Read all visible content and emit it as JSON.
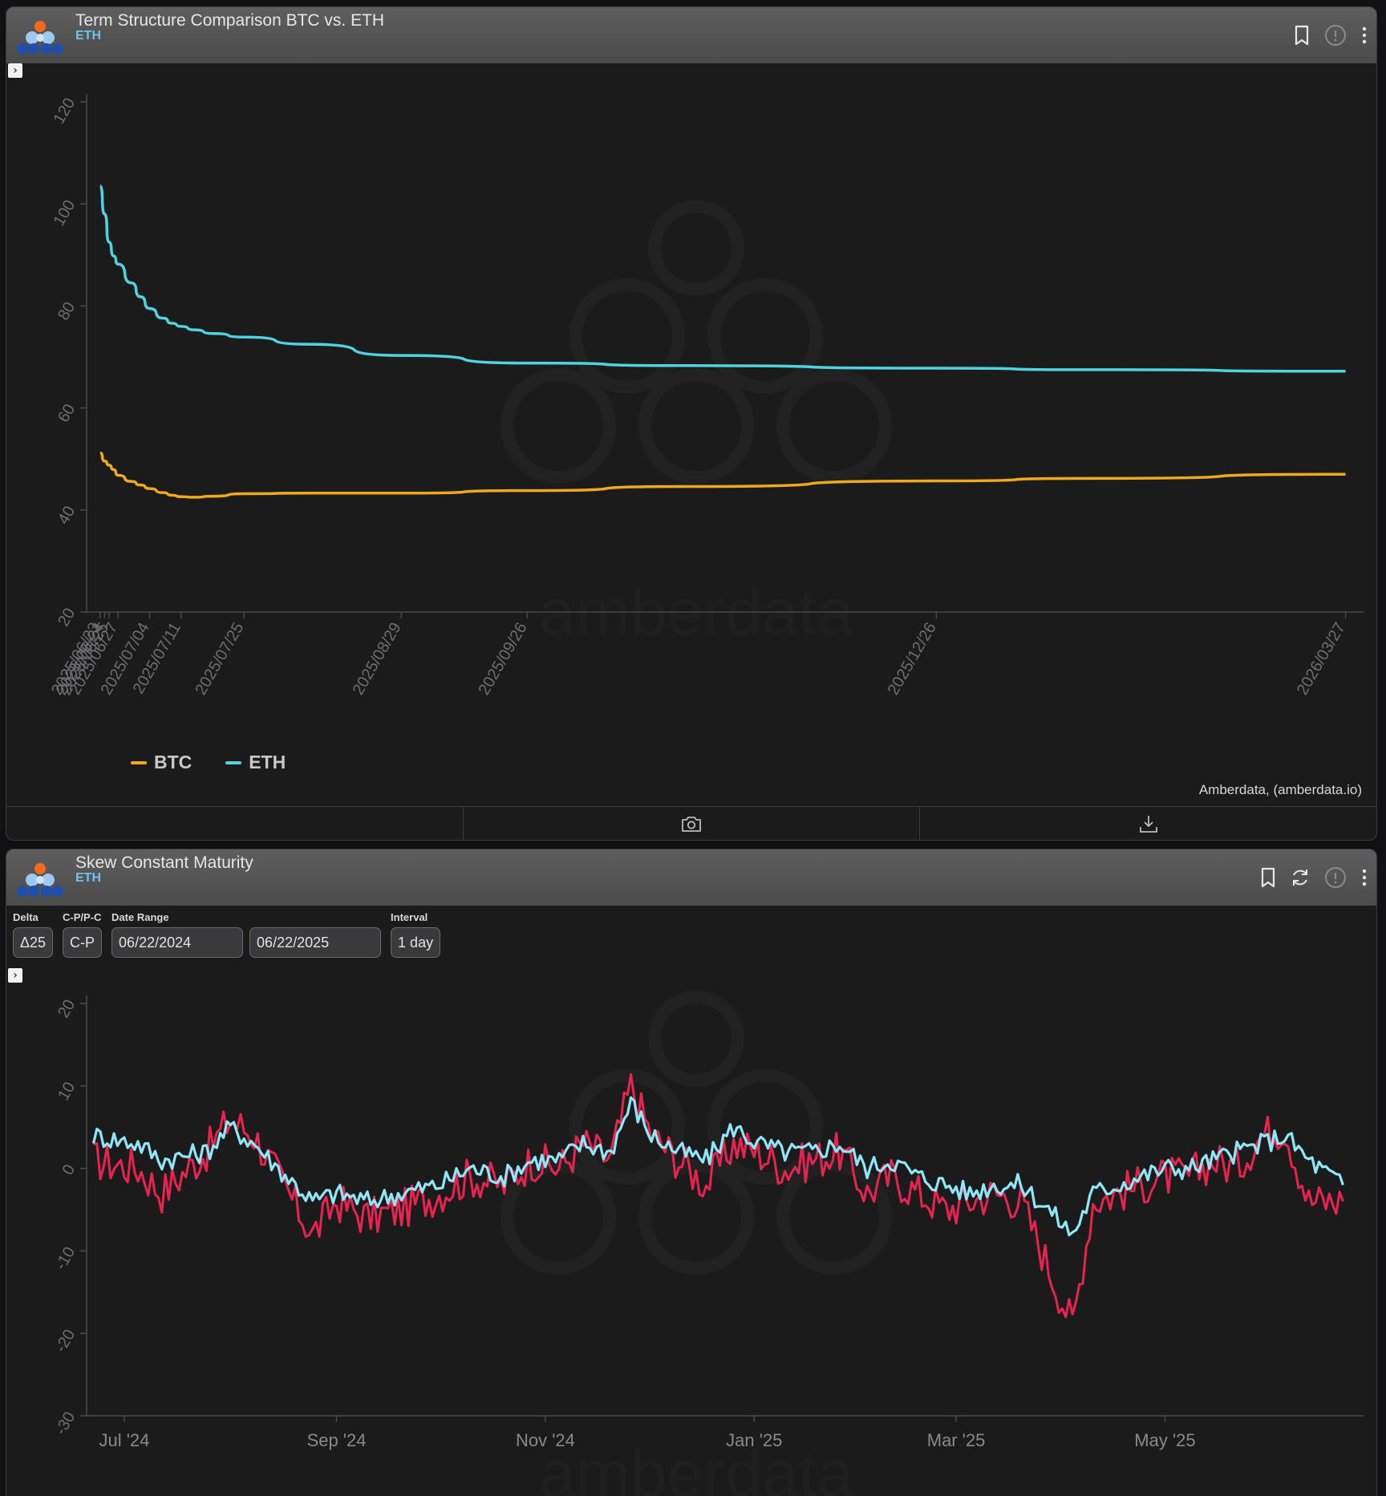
{
  "panel1": {
    "title": "Term Structure Comparison BTC vs. ETH",
    "subtitle": "ETH",
    "attribution": "Amberdata, (amberdata.io)",
    "watermark": "amberdata",
    "icons": [
      "bookmark-icon",
      "info-icon",
      "more-icon"
    ],
    "footer_icons": [
      "camera-icon",
      "download-icon"
    ]
  },
  "panel2": {
    "title": "Skew Constant Maturity",
    "subtitle": "ETH",
    "watermark": "amberdata",
    "icons": [
      "bookmark-icon",
      "refresh-icon",
      "info-icon",
      "more-icon"
    ],
    "controls": {
      "delta_label": "Delta",
      "delta_value": "Δ25",
      "cp_label": "C-P/P-C",
      "cp_value": "C-P",
      "date_range_label": "Date Range",
      "start_date": "06/22/2024",
      "end_date": "06/22/2025",
      "interval_label": "Interval",
      "interval_value": "1 day"
    }
  },
  "colors": {
    "btc": "#f0a91e",
    "eth": "#4fd3e0",
    "skew_red": "#e8234f",
    "skew_cyan": "#8fe6f7"
  },
  "chart_data": [
    {
      "type": "line",
      "title": "Term Structure Comparison BTC vs. ETH",
      "x_type": "date",
      "ylim": [
        20,
        120
      ],
      "yticks": [
        20,
        40,
        60,
        80,
        100,
        120
      ],
      "xticks": [
        "2025/06/23",
        "2025/06/24",
        "2025/06/25",
        "2025/06/27",
        "2025/07/04",
        "2025/07/11",
        "2025/07/25",
        "2025/08/29",
        "2025/09/26",
        "2025/12/26",
        "2026/03/27"
      ],
      "xrange": [
        "2025/06/20",
        "2026/03/31"
      ],
      "legend": "bottom-left",
      "grid": false,
      "series": [
        {
          "name": "BTC",
          "color": "#f0a91e",
          "points": [
            [
              "2025/06/23",
              51.2
            ],
            [
              "2025/06/24",
              49.6
            ],
            [
              "2025/06/25",
              48.8
            ],
            [
              "2025/06/26",
              47.9
            ],
            [
              "2025/06/27",
              46.8
            ],
            [
              "2025/06/30",
              45.6
            ],
            [
              "2025/07/02",
              44.9
            ],
            [
              "2025/07/04",
              44.2
            ],
            [
              "2025/07/07",
              43.4
            ],
            [
              "2025/07/09",
              42.9
            ],
            [
              "2025/07/11",
              42.6
            ],
            [
              "2025/07/14",
              42.5
            ],
            [
              "2025/07/18",
              42.7
            ],
            [
              "2025/07/25",
              43.2
            ],
            [
              "2025/08/08",
              43.3
            ],
            [
              "2025/08/29",
              43.3
            ],
            [
              "2025/09/26",
              43.8
            ],
            [
              "2025/10/31",
              44.6
            ],
            [
              "2025/12/26",
              45.7
            ],
            [
              "2026/01/30",
              46.2
            ],
            [
              "2026/03/27",
              47.0
            ]
          ]
        },
        {
          "name": "ETH",
          "color": "#4fd3e0",
          "points": [
            [
              "2025/06/23",
              103.5
            ],
            [
              "2025/06/24",
              98.0
            ],
            [
              "2025/06/25",
              92.5
            ],
            [
              "2025/06/26",
              89.8
            ],
            [
              "2025/06/27",
              88.2
            ],
            [
              "2025/06/30",
              84.5
            ],
            [
              "2025/07/02",
              81.8
            ],
            [
              "2025/07/04",
              79.5
            ],
            [
              "2025/07/07",
              77.6
            ],
            [
              "2025/07/09",
              76.6
            ],
            [
              "2025/07/11",
              76.0
            ],
            [
              "2025/07/14",
              75.3
            ],
            [
              "2025/07/18",
              74.6
            ],
            [
              "2025/07/25",
              73.9
            ],
            [
              "2025/08/08",
              72.5
            ],
            [
              "2025/08/29",
              70.3
            ],
            [
              "2025/09/26",
              68.8
            ],
            [
              "2025/10/31",
              68.3
            ],
            [
              "2025/12/26",
              67.8
            ],
            [
              "2026/01/30",
              67.5
            ],
            [
              "2026/03/27",
              67.2
            ]
          ]
        }
      ]
    },
    {
      "type": "line",
      "title": "Skew Constant Maturity",
      "x_type": "date",
      "ylim": [
        -30,
        20
      ],
      "yticks": [
        -30,
        -20,
        -10,
        0,
        10,
        20
      ],
      "xticks": [
        "Jul '24",
        "Sep '24",
        "Nov '24",
        "Jan '25",
        "Mar '25",
        "May '25"
      ],
      "xtick_dates": [
        "2024-07-01",
        "2024-09-01",
        "2024-11-01",
        "2025-01-01",
        "2025-03-01",
        "2025-05-01"
      ],
      "xrange": [
        "2024-06-20",
        "2025-06-28"
      ],
      "x_start": "2024-06-22",
      "x_end": "2025-06-22",
      "grid": false,
      "series": [
        {
          "color": "#e8234f",
          "points": [
            [
              "2024-06-22",
              1
            ],
            [
              "2024-07-05",
              0
            ],
            [
              "2024-07-12",
              -3
            ],
            [
              "2024-07-25",
              2
            ],
            [
              "2024-08-01",
              6
            ],
            [
              "2024-08-08",
              4
            ],
            [
              "2024-08-15",
              -1
            ],
            [
              "2024-08-25",
              -8
            ],
            [
              "2024-09-01",
              -4
            ],
            [
              "2024-09-10",
              -6
            ],
            [
              "2024-09-20",
              -5
            ],
            [
              "2024-10-01",
              -3
            ],
            [
              "2024-10-10",
              -1
            ],
            [
              "2024-10-20",
              -2
            ],
            [
              "2024-10-28",
              1
            ],
            [
              "2024-11-05",
              0
            ],
            [
              "2024-11-12",
              3
            ],
            [
              "2024-11-20",
              1
            ],
            [
              "2024-11-26",
              10
            ],
            [
              "2024-12-02",
              4
            ],
            [
              "2024-12-10",
              1
            ],
            [
              "2024-12-18",
              -2
            ],
            [
              "2024-12-26",
              3
            ],
            [
              "2025-01-02",
              2
            ],
            [
              "2025-01-10",
              0
            ],
            [
              "2025-01-18",
              1
            ],
            [
              "2025-01-26",
              2
            ],
            [
              "2025-02-03",
              -3
            ],
            [
              "2025-02-10",
              -1
            ],
            [
              "2025-02-18",
              -3
            ],
            [
              "2025-02-26",
              -5
            ],
            [
              "2025-03-05",
              -4
            ],
            [
              "2025-03-12",
              -3
            ],
            [
              "2025-03-20",
              -4
            ],
            [
              "2025-03-28",
              -12
            ],
            [
              "2025-04-04",
              -19
            ],
            [
              "2025-04-10",
              -4
            ],
            [
              "2025-04-17",
              -3
            ],
            [
              "2025-04-24",
              -2
            ],
            [
              "2025-05-01",
              -1
            ],
            [
              "2025-05-08",
              -1
            ],
            [
              "2025-05-15",
              1
            ],
            [
              "2025-05-22",
              0
            ],
            [
              "2025-05-29",
              4
            ],
            [
              "2025-06-05",
              5
            ],
            [
              "2025-06-12",
              -4
            ],
            [
              "2025-06-22",
              -4
            ]
          ]
        },
        {
          "color": "#8fe6f7",
          "points": [
            [
              "2024-06-22",
              4
            ],
            [
              "2024-07-05",
              3
            ],
            [
              "2024-07-12",
              1
            ],
            [
              "2024-07-25",
              2
            ],
            [
              "2024-08-01",
              5
            ],
            [
              "2024-08-08",
              3
            ],
            [
              "2024-08-15",
              0
            ],
            [
              "2024-08-25",
              -4
            ],
            [
              "2024-09-01",
              -3
            ],
            [
              "2024-09-10",
              -4
            ],
            [
              "2024-09-20",
              -3
            ],
            [
              "2024-10-01",
              -2
            ],
            [
              "2024-10-10",
              0
            ],
            [
              "2024-10-20",
              -1
            ],
            [
              "2024-10-28",
              1
            ],
            [
              "2024-11-05",
              1
            ],
            [
              "2024-11-12",
              3
            ],
            [
              "2024-11-20",
              2
            ],
            [
              "2024-11-26",
              8
            ],
            [
              "2024-12-02",
              4
            ],
            [
              "2024-12-10",
              2
            ],
            [
              "2024-12-18",
              1
            ],
            [
              "2024-12-26",
              5
            ],
            [
              "2025-01-02",
              3
            ],
            [
              "2025-01-10",
              2
            ],
            [
              "2025-01-18",
              2
            ],
            [
              "2025-01-26",
              3
            ],
            [
              "2025-02-03",
              0
            ],
            [
              "2025-02-10",
              1
            ],
            [
              "2025-02-18",
              -1
            ],
            [
              "2025-02-26",
              -2
            ],
            [
              "2025-03-05",
              -3
            ],
            [
              "2025-03-12",
              -2
            ],
            [
              "2025-03-20",
              -2
            ],
            [
              "2025-03-28",
              -5
            ],
            [
              "2025-04-04",
              -8
            ],
            [
              "2025-04-10",
              -3
            ],
            [
              "2025-04-17",
              -2
            ],
            [
              "2025-04-24",
              -1
            ],
            [
              "2025-05-01",
              0
            ],
            [
              "2025-05-08",
              0
            ],
            [
              "2025-05-15",
              1
            ],
            [
              "2025-05-22",
              2
            ],
            [
              "2025-05-29",
              3
            ],
            [
              "2025-06-05",
              4
            ],
            [
              "2025-06-12",
              1
            ],
            [
              "2025-06-22",
              -2
            ]
          ]
        }
      ]
    }
  ]
}
